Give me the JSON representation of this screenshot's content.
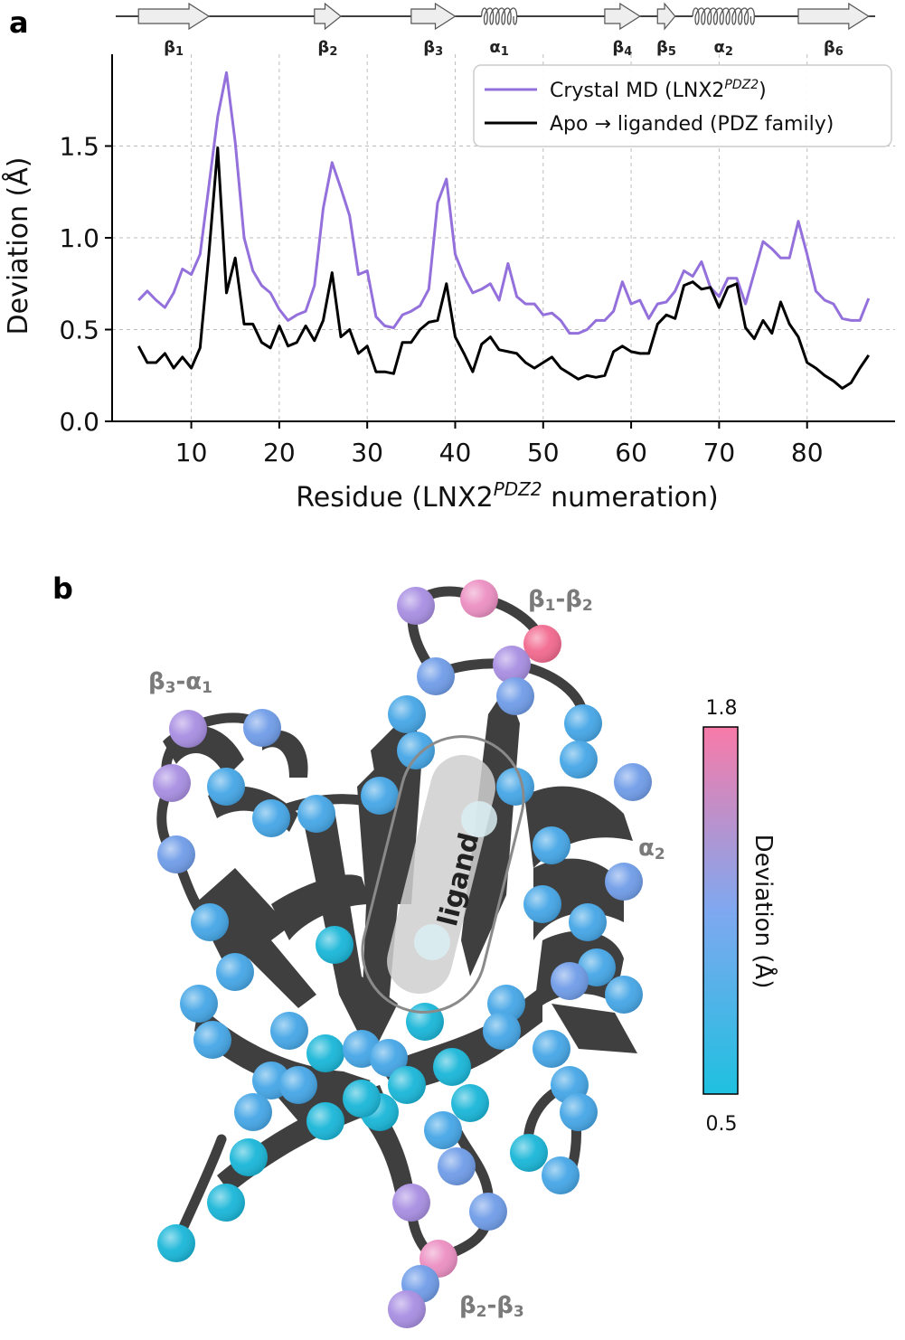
{
  "panel_a_letter": "a",
  "panel_b_letter": "b",
  "secondary_structure": [
    {
      "type": "strand",
      "label": "β",
      "sub": "1",
      "start": 4,
      "end": 12
    },
    {
      "type": "strand",
      "label": "β",
      "sub": "2",
      "start": 24,
      "end": 27
    },
    {
      "type": "strand",
      "label": "β",
      "sub": "3",
      "start": 35,
      "end": 40
    },
    {
      "type": "helix",
      "label": "α",
      "sub": "1",
      "start": 43,
      "end": 47
    },
    {
      "type": "strand",
      "label": "β",
      "sub": "4",
      "start": 57,
      "end": 61
    },
    {
      "type": "strand",
      "label": "β",
      "sub": "5",
      "start": 63,
      "end": 65
    },
    {
      "type": "helix",
      "label": "α",
      "sub": "2",
      "start": 67,
      "end": 74
    },
    {
      "type": "strand",
      "label": "β",
      "sub": "6",
      "start": 79,
      "end": 87
    }
  ],
  "chart_data": {
    "type": "line",
    "xlabel_main": "Residue (LNX2",
    "xlabel_sup": "PDZ2",
    "xlabel_end": " numeration)",
    "ylabel": "Deviation (Å)",
    "xlim": [
      1,
      90
    ],
    "ylim": [
      0,
      2.0
    ],
    "xticks": [
      10,
      20,
      30,
      40,
      50,
      60,
      70,
      80
    ],
    "yticks": [
      0.0,
      0.5,
      1.0,
      1.5
    ],
    "ytick_labels": [
      "0.0",
      "0.5",
      "1.0",
      "1.5"
    ],
    "grid": true,
    "legend_position": "top-right",
    "series": [
      {
        "name_main": "Crystal MD (LNX2",
        "name_sup": "PDZ2",
        "name_end": ")",
        "color": "#9370DB",
        "x": [
          4,
          5,
          6,
          7,
          8,
          9,
          10,
          11,
          12,
          13,
          14,
          15,
          16,
          17,
          18,
          19,
          20,
          21,
          22,
          23,
          24,
          25,
          26,
          27,
          28,
          29,
          30,
          31,
          32,
          33,
          34,
          35,
          36,
          37,
          38,
          39,
          40,
          41,
          42,
          43,
          44,
          45,
          46,
          47,
          48,
          49,
          50,
          51,
          52,
          53,
          54,
          55,
          56,
          57,
          58,
          59,
          60,
          61,
          62,
          63,
          64,
          65,
          66,
          67,
          68,
          69,
          70,
          71,
          72,
          73,
          74,
          75,
          76,
          77,
          78,
          79,
          80,
          81,
          82,
          83,
          84,
          85,
          86,
          87
        ],
        "y": [
          0.66,
          0.71,
          0.66,
          0.62,
          0.7,
          0.83,
          0.8,
          0.91,
          1.28,
          1.66,
          1.9,
          1.52,
          1.0,
          0.82,
          0.74,
          0.7,
          0.61,
          0.55,
          0.58,
          0.6,
          0.74,
          1.16,
          1.41,
          1.27,
          1.12,
          0.8,
          0.82,
          0.57,
          0.52,
          0.51,
          0.58,
          0.6,
          0.63,
          0.72,
          1.19,
          1.32,
          0.91,
          0.79,
          0.7,
          0.72,
          0.75,
          0.66,
          0.86,
          0.68,
          0.64,
          0.64,
          0.58,
          0.59,
          0.55,
          0.48,
          0.48,
          0.5,
          0.55,
          0.55,
          0.6,
          0.76,
          0.64,
          0.66,
          0.56,
          0.64,
          0.65,
          0.71,
          0.82,
          0.79,
          0.87,
          0.73,
          0.68,
          0.78,
          0.78,
          0.64,
          0.81,
          0.98,
          0.94,
          0.89,
          0.89,
          1.09,
          0.91,
          0.71,
          0.66,
          0.64,
          0.56,
          0.55,
          0.55,
          0.67
        ]
      },
      {
        "name_main": "Apo → liganded (PDZ family)",
        "name_sup": "",
        "name_end": "",
        "color": "#000000",
        "x": [
          4,
          5,
          6,
          7,
          8,
          9,
          10,
          11,
          12,
          13,
          14,
          15,
          16,
          17,
          18,
          19,
          20,
          21,
          22,
          23,
          24,
          25,
          26,
          27,
          28,
          29,
          30,
          31,
          32,
          33,
          34,
          35,
          36,
          37,
          38,
          39,
          40,
          41,
          42,
          43,
          44,
          45,
          46,
          47,
          48,
          49,
          50,
          51,
          52,
          53,
          54,
          55,
          56,
          57,
          58,
          59,
          60,
          61,
          62,
          63,
          64,
          65,
          66,
          67,
          68,
          69,
          70,
          71,
          72,
          73,
          74,
          75,
          76,
          77,
          78,
          79,
          80,
          81,
          82,
          83,
          84,
          85,
          86,
          87
        ],
        "y": [
          0.41,
          0.32,
          0.32,
          0.37,
          0.29,
          0.35,
          0.29,
          0.4,
          0.91,
          1.49,
          0.7,
          0.89,
          0.53,
          0.53,
          0.43,
          0.4,
          0.52,
          0.41,
          0.43,
          0.52,
          0.44,
          0.55,
          0.81,
          0.46,
          0.5,
          0.37,
          0.41,
          0.27,
          0.27,
          0.26,
          0.43,
          0.43,
          0.5,
          0.54,
          0.55,
          0.75,
          0.46,
          0.37,
          0.27,
          0.42,
          0.46,
          0.39,
          0.38,
          0.37,
          0.32,
          0.29,
          0.32,
          0.35,
          0.29,
          0.26,
          0.23,
          0.25,
          0.24,
          0.25,
          0.38,
          0.41,
          0.38,
          0.37,
          0.37,
          0.53,
          0.58,
          0.56,
          0.74,
          0.76,
          0.72,
          0.73,
          0.62,
          0.73,
          0.75,
          0.51,
          0.45,
          0.55,
          0.48,
          0.65,
          0.53,
          0.46,
          0.32,
          0.29,
          0.25,
          0.22,
          0.18,
          0.21,
          0.29,
          0.36
        ]
      }
    ]
  },
  "panel_b": {
    "region_labels": [
      {
        "main": "β",
        "sub1": "1",
        "mid": "-β",
        "sub2": "2"
      },
      {
        "main": "β",
        "sub1": "3",
        "mid": "-α",
        "sub2": "1"
      },
      {
        "main": "α",
        "sub1": "2",
        "mid": "",
        "sub2": ""
      },
      {
        "main": "β",
        "sub1": "2",
        "mid": "-β",
        "sub2": "3"
      }
    ],
    "ligand_label": "ligand",
    "colorbar": {
      "title": "Deviation (Å)",
      "min_label": "0.5",
      "max_label": "1.8",
      "color_low": "#1EC0E0",
      "color_mid": "#7FA8F0",
      "color_high": "#F87AA8"
    },
    "ribbon_color": "#3f3f3f"
  }
}
